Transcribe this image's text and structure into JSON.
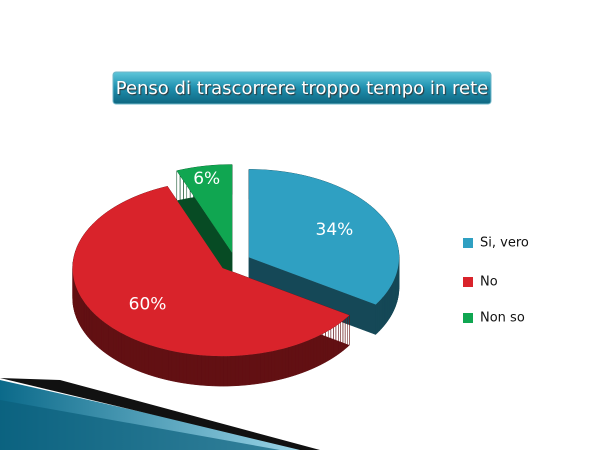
{
  "chart_data": {
    "type": "pie",
    "title": "Penso di trascorrere troppo tempo in rete",
    "categories": [
      "Si, vero",
      "No",
      "Non so"
    ],
    "values": [
      34,
      60,
      6
    ],
    "value_labels": [
      "34%",
      "60%",
      "6%"
    ],
    "colors": [
      "#2fa0c2",
      "#d9232b",
      "#10a651"
    ],
    "legend": "right"
  }
}
